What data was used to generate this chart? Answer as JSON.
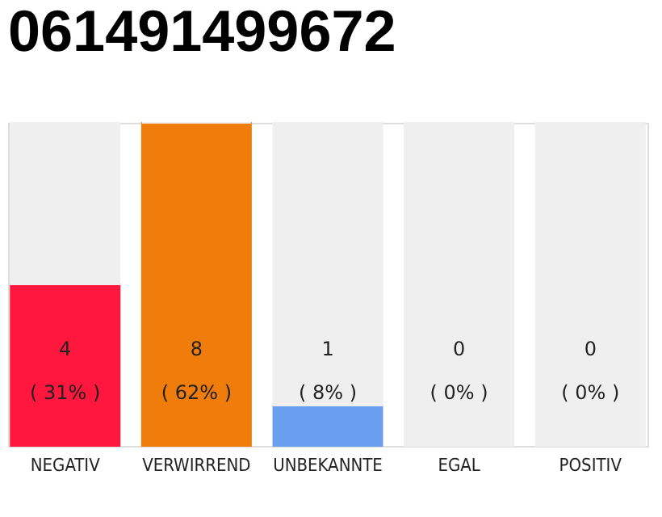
{
  "chart_data": {
    "type": "bar",
    "title": "061491499672",
    "categories": [
      "NEGATIV",
      "VERWIRREND",
      "UNBEKANNTE",
      "EGAL",
      "POSITIV"
    ],
    "stacked": true,
    "series": [
      {
        "values": [
          4,
          8,
          1,
          0,
          0
        ],
        "colors": [
          "#ff173d",
          "#f07d0b",
          "#6a9ff0",
          "#78c36a",
          "#1fa84a"
        ],
        "value_labels": [
          "4\n( 31% )",
          "8\n( 62% )",
          "1\n( 8% )",
          "0\n( 0% )",
          "0\n( 0% )"
        ]
      },
      {
        "values": [
          4,
          0,
          7,
          8,
          8
        ],
        "color": "#efefef"
      }
    ],
    "legend": false
  }
}
